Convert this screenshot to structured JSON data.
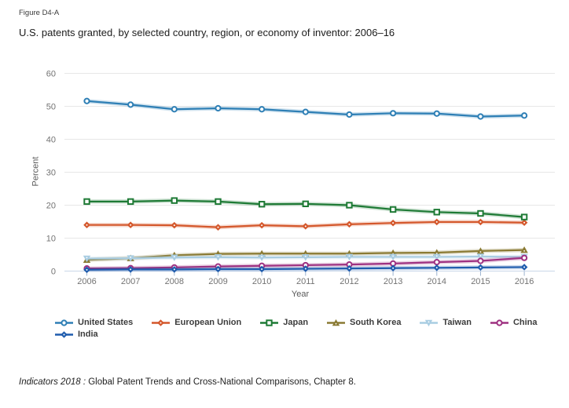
{
  "figure_label": "Figure D4-A",
  "title": "U.S. patents granted, by selected country, region, or economy of inventor: 2006–16",
  "source_note": {
    "italic": "Indicators 2018 :",
    "rest": " Global Patent Trends and Cross-National Comparisons, Chapter 8."
  },
  "chart_data": {
    "type": "line",
    "title": "U.S. patents granted, by selected country, region, or economy of inventor: 2006–16",
    "xlabel": "Year",
    "ylabel": "Percent",
    "x": [
      2006,
      2007,
      2008,
      2009,
      2010,
      2011,
      2012,
      2013,
      2014,
      2015,
      2016
    ],
    "ylim": [
      0,
      60
    ],
    "yticks": [
      0,
      10,
      20,
      30,
      40,
      50,
      60
    ],
    "grid": true,
    "legend_position": "bottom",
    "series": [
      {
        "name": "United States",
        "color": "#2e7fb5",
        "marker": "open-circle",
        "values": [
          51.6,
          50.5,
          49.1,
          49.4,
          49.1,
          48.3,
          47.5,
          47.9,
          47.8,
          46.9,
          47.2
        ]
      },
      {
        "name": "European Union",
        "color": "#d4572b",
        "marker": "diamond",
        "values": [
          14.0,
          14.0,
          13.9,
          13.3,
          13.9,
          13.6,
          14.2,
          14.6,
          14.9,
          14.9,
          14.7
        ]
      },
      {
        "name": "Japan",
        "color": "#1e7a35",
        "marker": "open-square",
        "values": [
          21.1,
          21.1,
          21.4,
          21.1,
          20.3,
          20.4,
          20.0,
          18.7,
          17.9,
          17.5,
          16.4
        ]
      },
      {
        "name": "South Korea",
        "color": "#8a7a33",
        "marker": "triangle-up",
        "values": [
          3.4,
          3.9,
          4.8,
          5.2,
          5.3,
          5.3,
          5.3,
          5.5,
          5.6,
          6.1,
          6.4
        ]
      },
      {
        "name": "Taiwan",
        "color": "#a9cde2",
        "marker": "triangle-down",
        "values": [
          3.8,
          3.9,
          4.1,
          4.2,
          4.1,
          4.2,
          4.3,
          4.3,
          4.3,
          4.4,
          4.3
        ]
      },
      {
        "name": "China",
        "color": "#9e3181",
        "marker": "open-circle",
        "values": [
          0.8,
          0.9,
          1.1,
          1.4,
          1.6,
          1.8,
          2.0,
          2.3,
          2.7,
          3.1,
          4.0
        ]
      },
      {
        "name": "India",
        "color": "#1f5cad",
        "marker": "diamond",
        "values": [
          0.4,
          0.5,
          0.5,
          0.6,
          0.6,
          0.7,
          0.8,
          0.9,
          1.0,
          1.1,
          1.2
        ]
      }
    ]
  }
}
